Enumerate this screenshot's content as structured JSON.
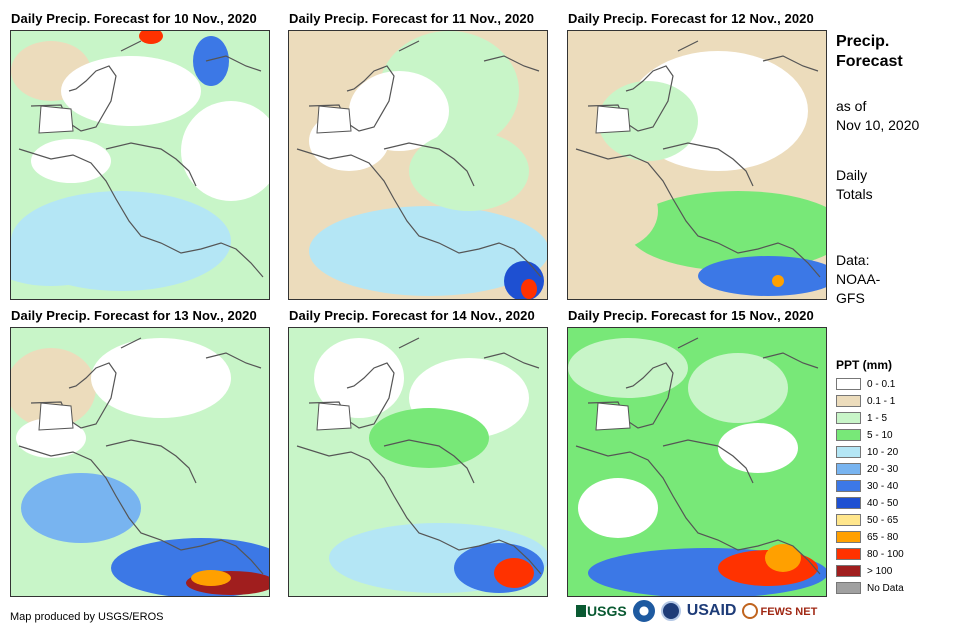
{
  "panels": [
    {
      "title": "Daily Precip. Forecast for 10 Nov., 2020"
    },
    {
      "title": "Daily Precip. Forecast for 11 Nov., 2020"
    },
    {
      "title": "Daily Precip. Forecast for 12 Nov., 2020"
    },
    {
      "title": "Daily Precip. Forecast for 13 Nov., 2020"
    },
    {
      "title": "Daily Precip. Forecast for 14 Nov., 2020"
    },
    {
      "title": "Daily Precip. Forecast for 15 Nov., 2020"
    }
  ],
  "side": {
    "title_line1": "Precip.",
    "title_line2": "Forecast",
    "asof_line1": "as of",
    "asof_line2": "Nov 10, 2020",
    "daily_line1": "Daily",
    "daily_line2": "Totals",
    "data_line1": "Data:",
    "data_line2": "NOAA-",
    "data_line3": "GFS"
  },
  "legend": {
    "title": "PPT (mm)",
    "items": [
      {
        "label": "0 - 0.1",
        "color": "#ffffff"
      },
      {
        "label": "0.1 - 1",
        "color": "#ecdcbc"
      },
      {
        "label": "1 - 5",
        "color": "#c8f5c8"
      },
      {
        "label": "5 - 10",
        "color": "#78e878"
      },
      {
        "label": "10 - 20",
        "color": "#b4e6f5"
      },
      {
        "label": "20 - 30",
        "color": "#78b4f0"
      },
      {
        "label": "30 - 40",
        "color": "#3c78e6"
      },
      {
        "label": "40 - 50",
        "color": "#1e50d2"
      },
      {
        "label": "50 - 65",
        "color": "#ffe68c"
      },
      {
        "label": "65 - 80",
        "color": "#ffa000"
      },
      {
        "label": "80 - 100",
        "color": "#ff3200"
      },
      {
        "label": "> 100",
        "color": "#a01e1e"
      },
      {
        "label": "No Data",
        "color": "#a0a0a0"
      }
    ]
  },
  "footer": {
    "text": "Map produced by USGS/EROS"
  },
  "logos": {
    "usgs": "USGS",
    "usaid": "USAID",
    "fewsnet": "FEWS NET"
  }
}
